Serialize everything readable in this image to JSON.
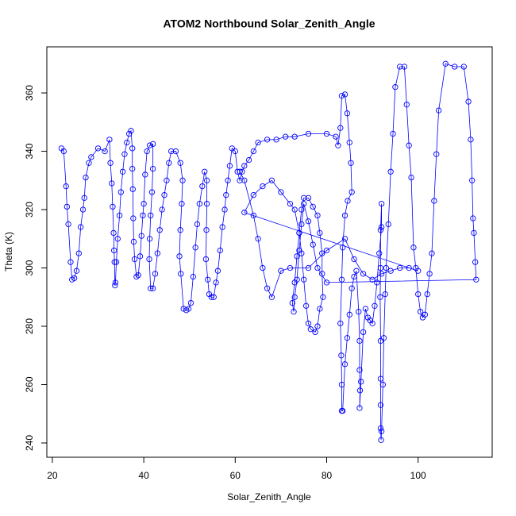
{
  "chart_data": {
    "type": "scatter",
    "lines": true,
    "color": "#0000ff",
    "title": "ATOM2 Northbound Solar_Zenith_Angle",
    "x_label": "Solar_Zenith_Angle",
    "y_label": "Theta (K)",
    "xlim": [
      18.8,
      116.2
    ],
    "ylim": [
      235.1,
      375.8
    ],
    "xticks": [
      20,
      40,
      60,
      80,
      100
    ],
    "yticks": [
      240,
      260,
      280,
      300,
      320,
      340,
      360
    ],
    "x": [
      22,
      22.5,
      23,
      23.2,
      23.5,
      24,
      24.3,
      24.8,
      25.3,
      25.8,
      26.2,
      26.7,
      27,
      27.3,
      28,
      28.5,
      30,
      31.5,
      32.5,
      32.7,
      33,
      33.2,
      33.4,
      33.5,
      33.6,
      33.7,
      33.8,
      34,
      34.3,
      34.7,
      35,
      35.4,
      35.8,
      36.3,
      36.8,
      37.2,
      37.5,
      37.5,
      37.6,
      37.7,
      37.8,
      38,
      38.4,
      38.8,
      39.2,
      39.5,
      39.8,
      40,
      40.3,
      40.7,
      41.3,
      42,
      42,
      41.8,
      41.5,
      41.3,
      41.2,
      41.5,
      42,
      42.5,
      43,
      43.5,
      44,
      44.5,
      45,
      45.5,
      46,
      47,
      48,
      48.5,
      48.3,
      48,
      47.8,
      48.1,
      48.7,
      49.3,
      49.8,
      50.3,
      50.8,
      51.3,
      51.7,
      52.2,
      52.8,
      53.3,
      53.8,
      53.8,
      53.7,
      53.6,
      54,
      54.3,
      54.8,
      55.3,
      55.8,
      56.2,
      56.7,
      57.2,
      57.7,
      58,
      58.4,
      58.8,
      59.3,
      60,
      60.5,
      61,
      61.5,
      62,
      63,
      64,
      65,
      67,
      69,
      71,
      73,
      76,
      80,
      82,
      82.5,
      83,
      83.3,
      84,
      84.5,
      85,
      85.3,
      85.5,
      84.6,
      84,
      83.5,
      83.3,
      83,
      83.2,
      83.3,
      83.3,
      83.5,
      84,
      84.5,
      85,
      85.5,
      86,
      86.5,
      87,
      87.2,
      87.2,
      87.3,
      87.2,
      87.5,
      88,
      88.5,
      89,
      89.5,
      90,
      90.5,
      91,
      91.5,
      92,
      92,
      91.8,
      91.8,
      91.7,
      91.8,
      91.8,
      91.8,
      91.8,
      91.9,
      92,
      92.3,
      92.5,
      92.8,
      93,
      93.5,
      94,
      94.5,
      95,
      96,
      97,
      97.5,
      98,
      98.5,
      99,
      99.5,
      100,
      100.5,
      101,
      101.5,
      102,
      102.5,
      103,
      103.5,
      104,
      104.5,
      106,
      108,
      110,
      111,
      111.5,
      111.8,
      112,
      112.2,
      112.5,
      112.7,
      80,
      78,
      77,
      76,
      75,
      74.5,
      74,
      73.5,
      73,
      72.8,
      72.5,
      73,
      73.5,
      74,
      74.5,
      75,
      76,
      77,
      78,
      78.5,
      79,
      79,
      79.2,
      78.5,
      78,
      77.5,
      76.5,
      76,
      75.5,
      75,
      74.5,
      74,
      73,
      72,
      70,
      68,
      66,
      64,
      62,
      100,
      98,
      96,
      94,
      92,
      90,
      88,
      86,
      84,
      80,
      76,
      72,
      70,
      68,
      67,
      66,
      65,
      64,
      62,
      61
    ],
    "values": [
      341,
      340,
      328,
      321,
      315,
      302,
      296,
      296.5,
      299,
      305,
      314,
      320,
      324,
      331,
      336,
      338,
      341,
      340,
      344,
      336,
      329,
      321,
      312,
      306,
      302,
      294,
      295,
      302,
      310,
      318,
      326,
      333,
      339,
      343,
      346,
      347,
      341,
      334,
      327,
      317,
      309,
      303,
      297,
      297.5,
      304,
      311,
      318,
      322,
      332,
      340,
      342,
      342.5,
      334,
      326,
      318,
      310,
      303,
      293,
      293,
      298,
      305,
      313,
      320,
      325,
      330,
      336,
      340,
      340,
      336,
      330,
      322,
      313,
      304,
      298,
      286,
      285.5,
      286,
      288,
      297,
      307,
      315,
      322,
      328,
      333,
      330,
      322,
      313,
      303,
      296,
      291,
      290,
      290,
      295,
      299,
      306,
      314,
      320,
      325,
      330,
      335,
      341,
      340,
      333,
      330,
      333,
      335,
      337,
      340,
      343,
      344,
      344,
      345,
      345,
      346,
      346,
      345,
      342,
      348,
      359,
      359.5,
      353,
      343,
      336,
      326,
      323,
      318,
      307,
      296,
      281,
      270,
      260,
      251,
      251,
      267,
      276,
      284,
      293,
      297,
      299,
      285,
      275,
      265,
      258,
      252,
      261,
      278,
      286,
      283,
      282,
      281,
      287,
      295,
      305,
      314,
      322,
      313,
      300,
      290,
      275,
      262,
      253,
      245,
      241,
      244,
      260,
      276,
      291,
      300,
      315,
      333,
      346,
      362,
      369,
      369,
      356,
      342,
      331,
      307,
      300,
      291,
      285,
      283,
      284,
      291,
      298,
      305,
      323,
      339,
      354,
      370,
      369,
      369,
      357,
      344,
      330,
      317,
      312,
      302,
      296,
      295,
      300,
      308,
      316,
      322,
      315,
      306,
      296,
      290,
      285,
      288,
      295,
      304,
      312,
      320,
      324,
      324,
      321,
      318,
      312,
      305,
      298,
      290,
      286,
      280,
      278,
      279,
      281,
      287,
      296,
      305,
      312,
      320,
      322,
      326,
      330,
      328,
      325,
      319,
      299,
      300,
      300,
      299,
      298,
      296,
      298,
      303,
      310,
      306,
      300,
      300,
      299,
      290,
      293,
      300,
      310,
      318,
      330,
      333
    ]
  }
}
